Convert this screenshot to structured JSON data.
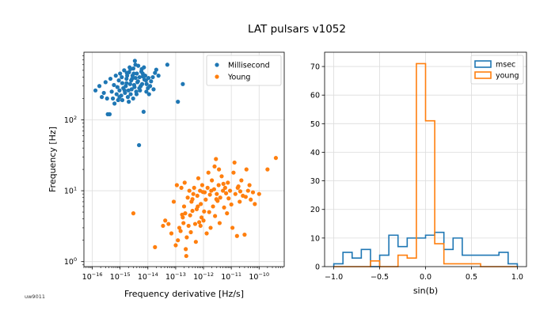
{
  "figure": {
    "title": "LAT pulsars v1052",
    "footnote": "uw9011"
  },
  "chart_data": [
    {
      "type": "scatter",
      "xlabel": "Frequency derivative [Hz/s]",
      "ylabel": "Frequency [Hz]",
      "xscale": "log",
      "yscale": "log",
      "xlim": [
        5e-17,
        8e-10
      ],
      "ylim": [
        0.85,
        900
      ],
      "x_ticks": [
        {
          "value": 1e-16,
          "label": "10",
          "exp": "−16"
        },
        {
          "value": 1e-15,
          "label": "10",
          "exp": "−15"
        },
        {
          "value": 1e-14,
          "label": "10",
          "exp": "−14"
        },
        {
          "value": 1e-13,
          "label": "10",
          "exp": "−13"
        },
        {
          "value": 1e-12,
          "label": "10",
          "exp": "−12"
        },
        {
          "value": 1e-11,
          "label": "10",
          "exp": "−11"
        },
        {
          "value": 1e-10,
          "label": "10",
          "exp": "−10"
        }
      ],
      "y_ticks": [
        {
          "value": 1,
          "label": "10",
          "exp": "0"
        },
        {
          "value": 10,
          "label": "10",
          "exp": "1"
        },
        {
          "value": 100,
          "label": "10",
          "exp": "2"
        }
      ],
      "grid": true,
      "legend": "top-right",
      "series": [
        {
          "name": "Millisecond",
          "color": "#1f77b4",
          "points": [
            [
              1.3e-16,
              260
            ],
            [
              1.8e-16,
              300
            ],
            [
              2.2e-16,
              210
            ],
            [
              2.6e-16,
              240
            ],
            [
              3e-16,
              340
            ],
            [
              3.4e-16,
              200
            ],
            [
              3.6e-16,
              120
            ],
            [
              4.2e-16,
              120
            ],
            [
              4.5e-16,
              380
            ],
            [
              5e-16,
              250
            ],
            [
              5.5e-16,
              200
            ],
            [
              6e-16,
              310
            ],
            [
              6.3e-16,
              170
            ],
            [
              7e-16,
              420
            ],
            [
              7.5e-16,
              230
            ],
            [
              8e-16,
              290
            ],
            [
              8.5e-16,
              190
            ],
            [
              9e-16,
              360
            ],
            [
              9.5e-16,
              260
            ],
            [
              1e-15,
              450
            ],
            [
              1.1e-15,
              220
            ],
            [
              1.2e-15,
              330
            ],
            [
              1.3e-15,
              280
            ],
            [
              1.4e-15,
              500
            ],
            [
              1.5e-15,
              240
            ],
            [
              1.6e-15,
              300
            ],
            [
              1.7e-15,
              380
            ],
            [
              1.8e-15,
              420
            ],
            [
              1.9e-15,
              210
            ],
            [
              2e-15,
              260
            ],
            [
              2.1e-15,
              470
            ],
            [
              2.2e-15,
              550
            ],
            [
              2.3e-15,
              320
            ],
            [
              2.5e-15,
              360
            ],
            [
              2.6e-15,
              270
            ],
            [
              2.8e-15,
              420
            ],
            [
              3e-15,
              530
            ],
            [
              3.2e-15,
              310
            ],
            [
              3.4e-15,
              680
            ],
            [
              3.6e-15,
              390
            ],
            [
              3.8e-15,
              250
            ],
            [
              4e-15,
              450
            ],
            [
              4.2e-15,
              340
            ],
            [
              4.5e-15,
              580
            ],
            [
              4.8e-15,
              44
            ],
            [
              5e-15,
              400
            ],
            [
              5.5e-15,
              300
            ],
            [
              6e-15,
              520
            ],
            [
              6.5e-15,
              450
            ],
            [
              7e-15,
              130
            ],
            [
              7.5e-15,
              370
            ],
            [
              8e-15,
              420
            ],
            [
              9e-15,
              320
            ],
            [
              1e-14,
              280
            ],
            [
              1.1e-14,
              230
            ],
            [
              1.3e-14,
              350
            ],
            [
              1.5e-14,
              400
            ],
            [
              1.8e-14,
              460
            ],
            [
              2e-14,
              510
            ],
            [
              5e-14,
              600
            ],
            [
              1.2e-13,
              180
            ],
            [
              1.8e-13,
              320
            ],
            [
              1.2e-15,
              190
            ],
            [
              2.4e-15,
              230
            ],
            [
              3.3e-15,
              290
            ],
            [
              4.4e-15,
              350
            ],
            [
              5.2e-15,
              260
            ],
            [
              6.6e-15,
              410
            ],
            [
              8.5e-15,
              360
            ],
            [
              1.2e-14,
              300
            ],
            [
              1.7e-15,
              330
            ],
            [
              2.7e-15,
              380
            ],
            [
              3.1e-15,
              450
            ],
            [
              5.8e-15,
              480
            ],
            [
              7.2e-15,
              550
            ],
            [
              9.5e-16,
              210
            ],
            [
              1.45e-15,
              260
            ],
            [
              2.05e-15,
              180
            ],
            [
              2.95e-15,
              200
            ],
            [
              3.9e-15,
              230
            ],
            [
              4.9e-15,
              280
            ],
            [
              6.2e-15,
              320
            ],
            [
              8.8e-15,
              250
            ],
            [
              1.05e-14,
              390
            ],
            [
              1.6e-14,
              270
            ],
            [
              2.4e-14,
              420
            ],
            [
              1.15e-15,
              400
            ],
            [
              1.75e-15,
              460
            ],
            [
              2.35e-15,
              520
            ],
            [
              3.55e-15,
              600
            ]
          ]
        },
        {
          "name": "Young",
          "color": "#ff7f0e",
          "points": [
            [
              3e-15,
              4.8
            ],
            [
              1.8e-14,
              1.6
            ],
            [
              3.5e-14,
              3.2
            ],
            [
              4.2e-14,
              3.8
            ],
            [
              5.5e-14,
              3.4
            ],
            [
              7e-14,
              2.5
            ],
            [
              8.5e-14,
              7
            ],
            [
              1e-13,
              1.7
            ],
            [
              1.1e-13,
              12
            ],
            [
              1.2e-13,
              2
            ],
            [
              1.35e-13,
              3
            ],
            [
              1.5e-13,
              2.7
            ],
            [
              1.6e-13,
              11
            ],
            [
              1.7e-13,
              4.6
            ],
            [
              1.8e-13,
              4.2
            ],
            [
              1.9e-13,
              3.5
            ],
            [
              2e-13,
              6
            ],
            [
              2.1e-13,
              13
            ],
            [
              2.2e-13,
              4.8
            ],
            [
              2.3e-13,
              1.5
            ],
            [
              2.4e-13,
              1.2
            ],
            [
              2.5e-13,
              2.2
            ],
            [
              2.7e-13,
              8
            ],
            [
              2.9e-13,
              3.2
            ],
            [
              3.1e-13,
              10
            ],
            [
              3.3e-13,
              4.5
            ],
            [
              3.5e-13,
              2.6
            ],
            [
              3.7e-13,
              7
            ],
            [
              4e-13,
              5.2
            ],
            [
              4.3e-13,
              9
            ],
            [
              4.6e-13,
              11
            ],
            [
              5e-13,
              3.4
            ],
            [
              5.3e-13,
              1.9
            ],
            [
              5.7e-13,
              5.5
            ],
            [
              6e-13,
              8.5
            ],
            [
              6.5e-13,
              15
            ],
            [
              7e-13,
              3.6
            ],
            [
              7.5e-13,
              10
            ],
            [
              8e-13,
              6.5
            ],
            [
              8.5e-13,
              4.2
            ],
            [
              9e-13,
              12
            ],
            [
              1e-12,
              3.8
            ],
            [
              1.1e-12,
              9.5
            ],
            [
              1.2e-12,
              7.5
            ],
            [
              1.3e-12,
              2.5
            ],
            [
              1.4e-12,
              11
            ],
            [
              1.5e-12,
              18
            ],
            [
              1.6e-12,
              5
            ],
            [
              1.7e-12,
              8.8
            ],
            [
              1.8e-12,
              3
            ],
            [
              2e-12,
              14
            ],
            [
              2.2e-12,
              6
            ],
            [
              2.4e-12,
              10.5
            ],
            [
              2.6e-12,
              4.4
            ],
            [
              2.8e-12,
              28
            ],
            [
              3e-12,
              9
            ],
            [
              3.2e-12,
              7.2
            ],
            [
              3.5e-12,
              12
            ],
            [
              3.8e-12,
              3.5
            ],
            [
              4e-12,
              8
            ],
            [
              4.5e-12,
              16
            ],
            [
              5e-12,
              10
            ],
            [
              5.5e-12,
              5.8
            ],
            [
              6e-12,
              11
            ],
            [
              6.5e-12,
              9.2
            ],
            [
              7e-12,
              4.8
            ],
            [
              7.5e-12,
              13
            ],
            [
              8e-12,
              7.8
            ],
            [
              9e-12,
              10
            ],
            [
              1e-11,
              6.4
            ],
            [
              1.1e-11,
              3
            ],
            [
              1.2e-11,
              18
            ],
            [
              1.4e-11,
              9
            ],
            [
              1.6e-11,
              2.3
            ],
            [
              1.8e-11,
              11.5
            ],
            [
              2e-11,
              7
            ],
            [
              2.3e-11,
              14
            ],
            [
              2.6e-11,
              8.5
            ],
            [
              3e-11,
              2.4
            ],
            [
              3.5e-11,
              20
            ],
            [
              4e-11,
              10
            ],
            [
              4.5e-11,
              12
            ],
            [
              5e-11,
              7.5
            ],
            [
              6e-11,
              9.5
            ],
            [
              7e-11,
              6.5
            ],
            [
              2e-10,
              20
            ],
            [
              4e-10,
              29
            ],
            [
              1e-10,
              9
            ],
            [
              2.5e-12,
              22
            ],
            [
              1.3e-11,
              25
            ],
            [
              4e-13,
              7.6
            ],
            [
              1.9e-12,
              10
            ],
            [
              9.5e-13,
              9.6
            ],
            [
              3.6e-12,
              20
            ],
            [
              2.1e-11,
              9.8
            ],
            [
              7.8e-13,
              3.2
            ],
            [
              1.05e-12,
              5.1
            ],
            [
              6.2e-13,
              6
            ],
            [
              2.9e-12,
              7.6
            ],
            [
              5.2e-12,
              12.5
            ],
            [
              1.7e-11,
              11
            ],
            [
              3.3e-11,
              8.2
            ]
          ]
        }
      ]
    },
    {
      "type": "histogram",
      "histtype": "step",
      "xlabel": "sin(b)",
      "ylabel": "",
      "xlim": [
        -1.1,
        1.1
      ],
      "ylim": [
        0,
        75
      ],
      "x_ticks": [
        -1.0,
        -0.5,
        0.0,
        0.5,
        1.0
      ],
      "x_tick_labels": [
        "−1.0",
        "−0.5",
        "0.0",
        "0.5",
        "1.0"
      ],
      "y_ticks": [
        0,
        10,
        20,
        30,
        40,
        50,
        60,
        70
      ],
      "grid": true,
      "legend": "top-right",
      "bin_edges": [
        -1.0,
        -0.9,
        -0.8,
        -0.7,
        -0.6,
        -0.5,
        -0.4,
        -0.3,
        -0.2,
        -0.1,
        0.0,
        0.1,
        0.2,
        0.3,
        0.4,
        0.5,
        0.6,
        0.7,
        0.8,
        0.9,
        1.0
      ],
      "series": [
        {
          "name": "msec",
          "color": "#1f77b4",
          "counts": [
            1,
            5,
            3,
            6,
            0,
            4,
            11,
            7,
            10,
            10,
            11,
            12,
            6,
            10,
            4,
            4,
            4,
            4,
            5,
            1
          ]
        },
        {
          "name": "young",
          "color": "#ff7f0e",
          "counts": [
            0,
            0,
            0,
            0,
            2,
            0,
            0,
            4,
            3,
            71,
            51,
            8,
            1,
            1,
            1,
            1,
            0,
            0,
            0,
            0
          ]
        }
      ]
    }
  ]
}
